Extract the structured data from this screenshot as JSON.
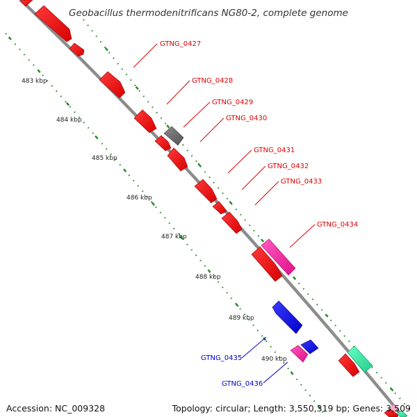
{
  "title": "Geobacillus thermodenitrificans NG80-2, complete genome",
  "footer": {
    "accession": "Accession: NC_009328",
    "topology": "Topology: circular; Length: 3,550,319 bp; Genes: 3,509"
  },
  "colors": {
    "backbone": "#8c8c8c",
    "dotted_track": "#2e8b2e",
    "forward_gene": "#ff1a1a",
    "reverse_gene": "#1a1aff",
    "pseudo_gene": "#6e6e6e",
    "rna_gene": "#ff33aa",
    "trna_gene": "#33e6a0"
  },
  "ticks": [
    {
      "label": "483 kbp"
    },
    {
      "label": "484 kbp"
    },
    {
      "label": "485 kbp"
    },
    {
      "label": "486 kbp"
    },
    {
      "label": "487 kbp"
    },
    {
      "label": "488 kbp"
    },
    {
      "label": "489 kbp"
    },
    {
      "label": "490 kbp"
    }
  ],
  "gene_labels": [
    {
      "text": "GTNG_0427",
      "color": "#dd0000"
    },
    {
      "text": "GTNG_0428",
      "color": "#dd0000"
    },
    {
      "text": "GTNG_0429",
      "color": "#dd0000"
    },
    {
      "text": "GTNG_0430",
      "color": "#dd0000"
    },
    {
      "text": "GTNG_0431",
      "color": "#dd0000"
    },
    {
      "text": "GTNG_0432",
      "color": "#dd0000"
    },
    {
      "text": "GTNG_0433",
      "color": "#dd0000"
    },
    {
      "text": "GTNG_0434",
      "color": "#dd0000"
    },
    {
      "text": "GTNG_0435",
      "color": "#0000cc"
    },
    {
      "text": "GTNG_0436",
      "color": "#0000cc"
    }
  ]
}
